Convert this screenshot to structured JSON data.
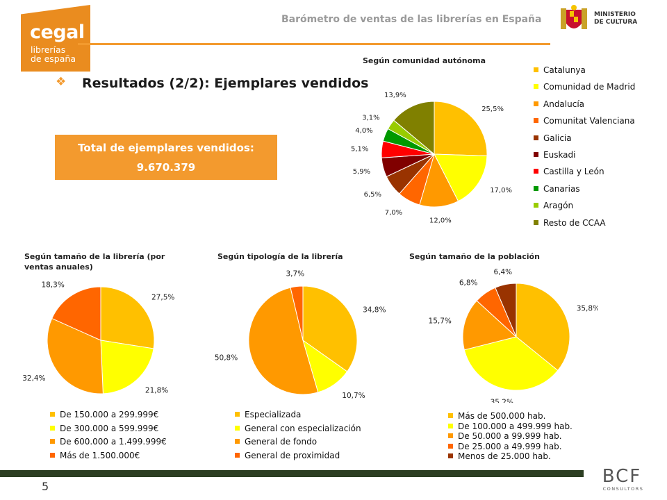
{
  "logo": {
    "brand": "cegal",
    "line1": "librerías",
    "line2": "de españa"
  },
  "header": {
    "title": "Barómetro de ventas de las librerías en España",
    "ministry_line1": "MINISTERIO",
    "ministry_line2": "DE CULTURA"
  },
  "slide": {
    "title": "Resultados (2/2): Ejemplares vendidos"
  },
  "total": {
    "label": "Total de ejemplares vendidos:",
    "value": "9.670.379"
  },
  "footer": {
    "page_number": "5",
    "consultant_logo": "BCF",
    "consultant_sub": "CONSULTORS"
  },
  "colors": {
    "accent": "#f39a2e",
    "footer_bar": "#2c3e22"
  },
  "chart_data": [
    {
      "id": "ccaa",
      "type": "pie",
      "title": "Según comunidad autónoma",
      "categories": [
        "Catalunya",
        "Comunidad de Madrid",
        "Andalucía",
        "Comunitat Valenciana",
        "Galicia",
        "Euskadi",
        "Castilla y León",
        "Canarias",
        "Aragón",
        "Resto de CCAA"
      ],
      "values": [
        25.5,
        17.0,
        12.0,
        7.0,
        6.5,
        5.9,
        5.1,
        4.0,
        3.1,
        13.9
      ],
      "labels": [
        "25,5%",
        "17,0%",
        "12,0%",
        "7,0%",
        "6,5%",
        "5,9%",
        "5,1%",
        "4,0%",
        "3,1%",
        "13,9%"
      ],
      "colors": [
        "#ffc000",
        "#ffff00",
        "#ff9900",
        "#ff6600",
        "#993300",
        "#800000",
        "#ff0000",
        "#009900",
        "#99cc00",
        "#808000"
      ],
      "legend_position": "right"
    },
    {
      "id": "tamano_libreria",
      "type": "pie",
      "title": "Según tamaño de la librería (por ventas anuales)",
      "categories": [
        "De 150.000 a 299.999€",
        "De 300.000 a 599.999€",
        "De 600.000 a 1.499.999€",
        "Más de 1.500.000€"
      ],
      "values": [
        27.5,
        21.8,
        32.4,
        18.3
      ],
      "labels": [
        "27,5%",
        "21,8%",
        "32,4%",
        "18,3%"
      ],
      "colors": [
        "#ffc000",
        "#ffff00",
        "#ff9900",
        "#ff6600"
      ],
      "legend_position": "bottom"
    },
    {
      "id": "tipologia",
      "type": "pie",
      "title": "Según tipología de la librería",
      "categories": [
        "Especializada",
        "General con especialización",
        "General de fondo",
        "General de proximidad"
      ],
      "values": [
        34.8,
        10.7,
        50.8,
        3.7
      ],
      "labels": [
        "34,8%",
        "10,7%",
        "50,8%",
        "3,7%"
      ],
      "colors": [
        "#ffc000",
        "#ffff00",
        "#ff9900",
        "#ff6600"
      ],
      "legend_position": "bottom"
    },
    {
      "id": "poblacion",
      "type": "pie",
      "title": "Según tamaño de la población",
      "categories": [
        "Más de 500.000 hab.",
        "De 100.000 a 499.999 hab.",
        "De 50.000 a 99.999 hab.",
        "De 25.000 a 49.999 hab.",
        "Menos de 25.000 hab."
      ],
      "values": [
        35.8,
        35.2,
        15.7,
        6.8,
        6.4
      ],
      "labels": [
        "35,8%",
        "35,2%",
        "15,7%",
        "6,8%",
        "6,4%"
      ],
      "colors": [
        "#ffc000",
        "#ffff00",
        "#ff9900",
        "#ff6600",
        "#993300"
      ],
      "legend_position": "bottom"
    }
  ]
}
